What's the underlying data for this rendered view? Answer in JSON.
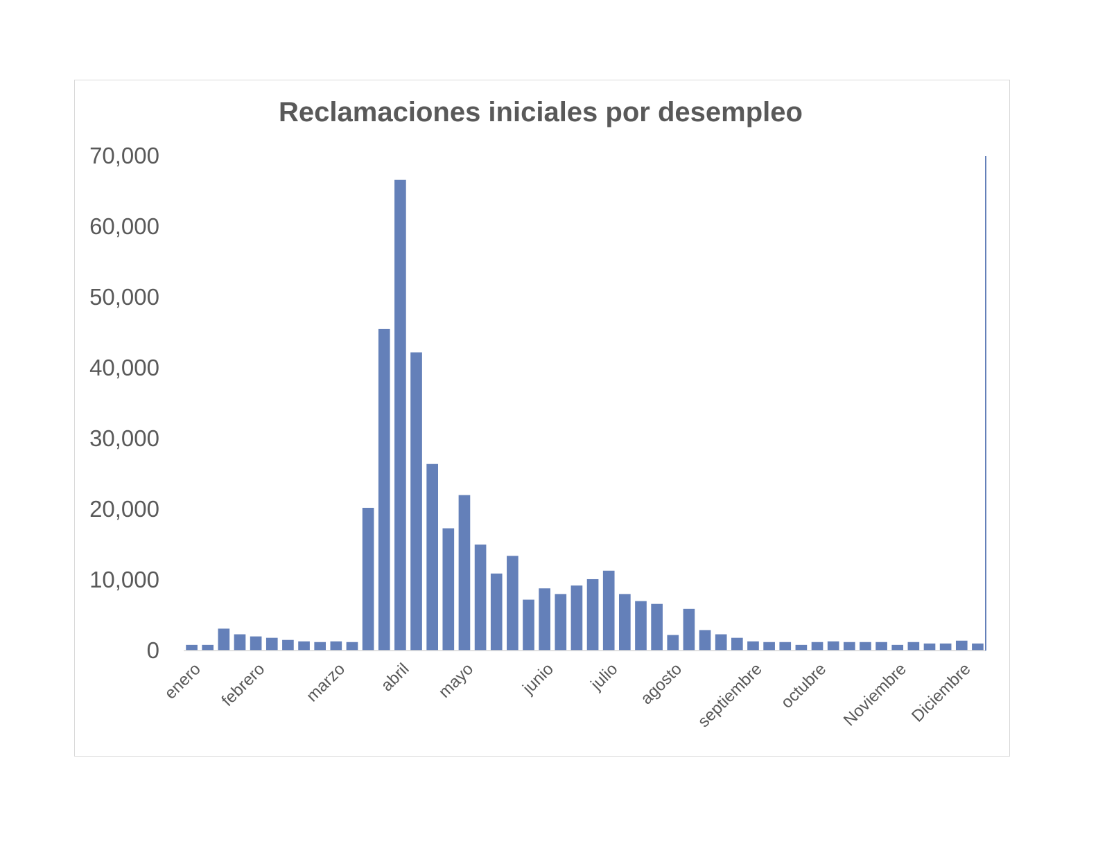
{
  "chart_data": {
    "type": "bar",
    "title": "Reclamaciones iniciales por desempleo",
    "xlabel": "",
    "ylabel": "",
    "ylim": [
      0,
      70000
    ],
    "yticks": [
      0,
      10000,
      20000,
      30000,
      40000,
      50000,
      60000,
      70000
    ],
    "ytick_labels": [
      "0",
      "10,000",
      "20,000",
      "30,000",
      "40,000",
      "50,000",
      "60,000",
      "70,000"
    ],
    "bar_color": "#6480b9",
    "grid": false,
    "category_labels": [
      {
        "label": "enero",
        "index": 0
      },
      {
        "label": "febrero",
        "index": 4
      },
      {
        "label": "marzo",
        "index": 9
      },
      {
        "label": "abril",
        "index": 13
      },
      {
        "label": "mayo",
        "index": 17
      },
      {
        "label": "junio",
        "index": 22
      },
      {
        "label": "julio",
        "index": 26
      },
      {
        "label": "agosto",
        "index": 30
      },
      {
        "label": "septiembre",
        "index": 35
      },
      {
        "label": "octubre",
        "index": 39
      },
      {
        "label": "Noviembre",
        "index": 44
      },
      {
        "label": "Diciembre",
        "index": 48
      }
    ],
    "values": [
      800,
      800,
      3100,
      2300,
      2000,
      1800,
      1500,
      1300,
      1200,
      1300,
      1200,
      20200,
      45500,
      66600,
      42200,
      26400,
      17300,
      22000,
      15000,
      10900,
      13400,
      7200,
      8800,
      8000,
      9200,
      10100,
      11300,
      8000,
      7000,
      6600,
      2200,
      5900,
      2900,
      2300,
      1800,
      1300,
      1200,
      1200,
      800,
      1200,
      1300,
      1200,
      1200,
      1200,
      800,
      1200,
      1000,
      1000,
      1400,
      1000
    ]
  }
}
